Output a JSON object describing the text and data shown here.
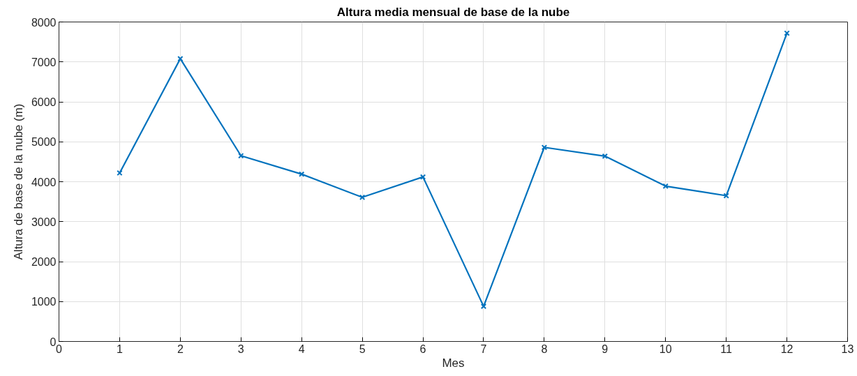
{
  "chart_data": {
    "type": "line",
    "title": "Altura media mensual de base de la nube",
    "xlabel": "Mes",
    "ylabel": "Altura de base de la nube (m)",
    "x": [
      1,
      2,
      3,
      4,
      5,
      6,
      7,
      8,
      9,
      10,
      11,
      12
    ],
    "series": [
      {
        "color": "#0072bd",
        "values": [
          4220,
          7080,
          4650,
          4190,
          3610,
          4120,
          880,
          4860,
          4640,
          3890,
          3650,
          7720
        ]
      }
    ],
    "xlim": [
      0,
      13
    ],
    "xticks": [
      0,
      1,
      2,
      3,
      4,
      5,
      6,
      7,
      8,
      9,
      10,
      11,
      12,
      13
    ],
    "ylim": [
      0,
      8000
    ],
    "yticks": [
      0,
      1000,
      2000,
      3000,
      4000,
      5000,
      6000,
      7000,
      8000
    ],
    "grid": true,
    "marker": "cross",
    "line_style": "solid"
  }
}
